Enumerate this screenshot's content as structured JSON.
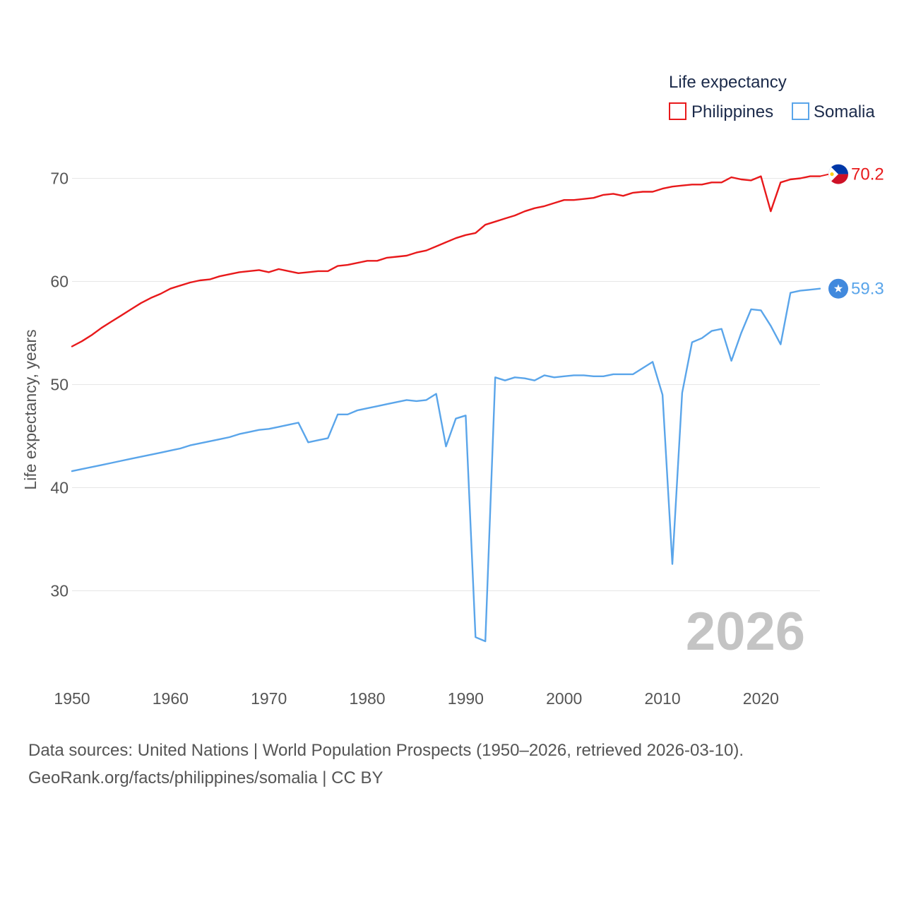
{
  "chart_data": {
    "type": "line",
    "legend_title": "Life expectancy",
    "ylabel": "Life expectancy, years",
    "xlabel": "",
    "xlim": [
      1950,
      2026
    ],
    "ylim": [
      23,
      73
    ],
    "y_ticks": [
      30,
      40,
      50,
      60,
      70
    ],
    "x_ticks": [
      1950,
      1960,
      1970,
      1980,
      1990,
      2000,
      2010,
      2020
    ],
    "year_watermark": "2026",
    "x": [
      1950,
      1951,
      1952,
      1953,
      1954,
      1955,
      1956,
      1957,
      1958,
      1959,
      1960,
      1961,
      1962,
      1963,
      1964,
      1965,
      1966,
      1967,
      1968,
      1969,
      1970,
      1971,
      1972,
      1973,
      1974,
      1975,
      1976,
      1977,
      1978,
      1979,
      1980,
      1981,
      1982,
      1983,
      1984,
      1985,
      1986,
      1987,
      1988,
      1989,
      1990,
      1991,
      1992,
      1993,
      1994,
      1995,
      1996,
      1997,
      1998,
      1999,
      2000,
      2001,
      2002,
      2003,
      2004,
      2005,
      2006,
      2007,
      2008,
      2009,
      2010,
      2011,
      2012,
      2013,
      2014,
      2015,
      2016,
      2017,
      2018,
      2019,
      2020,
      2021,
      2022,
      2023,
      2024,
      2025,
      2026
    ],
    "series": [
      {
        "name": "Philippines",
        "color": "#e8191b",
        "end_label": "70.2",
        "values": [
          53.7,
          54.2,
          54.8,
          55.5,
          56.1,
          56.7,
          57.3,
          57.9,
          58.4,
          58.8,
          59.3,
          59.6,
          59.9,
          60.1,
          60.2,
          60.5,
          60.7,
          60.9,
          61.0,
          61.1,
          60.9,
          61.2,
          61.0,
          60.8,
          60.9,
          61.0,
          61.0,
          61.5,
          61.6,
          61.8,
          62.0,
          62.0,
          62.3,
          62.4,
          62.5,
          62.8,
          63.0,
          63.4,
          63.8,
          64.2,
          64.5,
          64.7,
          65.5,
          65.8,
          66.1,
          66.4,
          66.8,
          67.1,
          67.3,
          67.6,
          67.9,
          67.9,
          68.0,
          68.1,
          68.4,
          68.5,
          68.3,
          68.6,
          68.7,
          68.7,
          69.0,
          69.2,
          69.3,
          69.4,
          69.4,
          69.6,
          69.6,
          70.1,
          69.9,
          69.8,
          70.2,
          66.8,
          69.6,
          69.9,
          70.0,
          70.2,
          70.2
        ]
      },
      {
        "name": "Somalia",
        "color": "#5aa5ea",
        "end_label": "59.3",
        "values": [
          41.6,
          41.8,
          42.0,
          42.2,
          42.4,
          42.6,
          42.8,
          43.0,
          43.2,
          43.4,
          43.6,
          43.8,
          44.1,
          44.3,
          44.5,
          44.7,
          44.9,
          45.2,
          45.4,
          45.6,
          45.7,
          45.9,
          46.1,
          46.3,
          44.4,
          44.6,
          44.8,
          47.1,
          47.1,
          47.5,
          47.7,
          47.9,
          48.1,
          48.3,
          48.5,
          48.4,
          48.5,
          49.1,
          44.0,
          46.7,
          47.0,
          25.5,
          25.1,
          50.7,
          50.4,
          50.7,
          50.6,
          50.4,
          50.9,
          50.7,
          50.8,
          50.9,
          50.9,
          50.8,
          50.8,
          51.0,
          51.0,
          51.0,
          51.6,
          52.2,
          49.0,
          32.6,
          49.2,
          54.1,
          54.5,
          55.2,
          55.4,
          52.3,
          55.0,
          57.3,
          57.2,
          55.7,
          53.9,
          58.9,
          59.1,
          59.2,
          59.3
        ]
      }
    ]
  },
  "footer": {
    "sources": "Data sources: United Nations | World Population Prospects (1950–2026, retrieved 2026-03-10).",
    "link": "GeoRank.org/facts/philippines/somalia | CC BY"
  }
}
